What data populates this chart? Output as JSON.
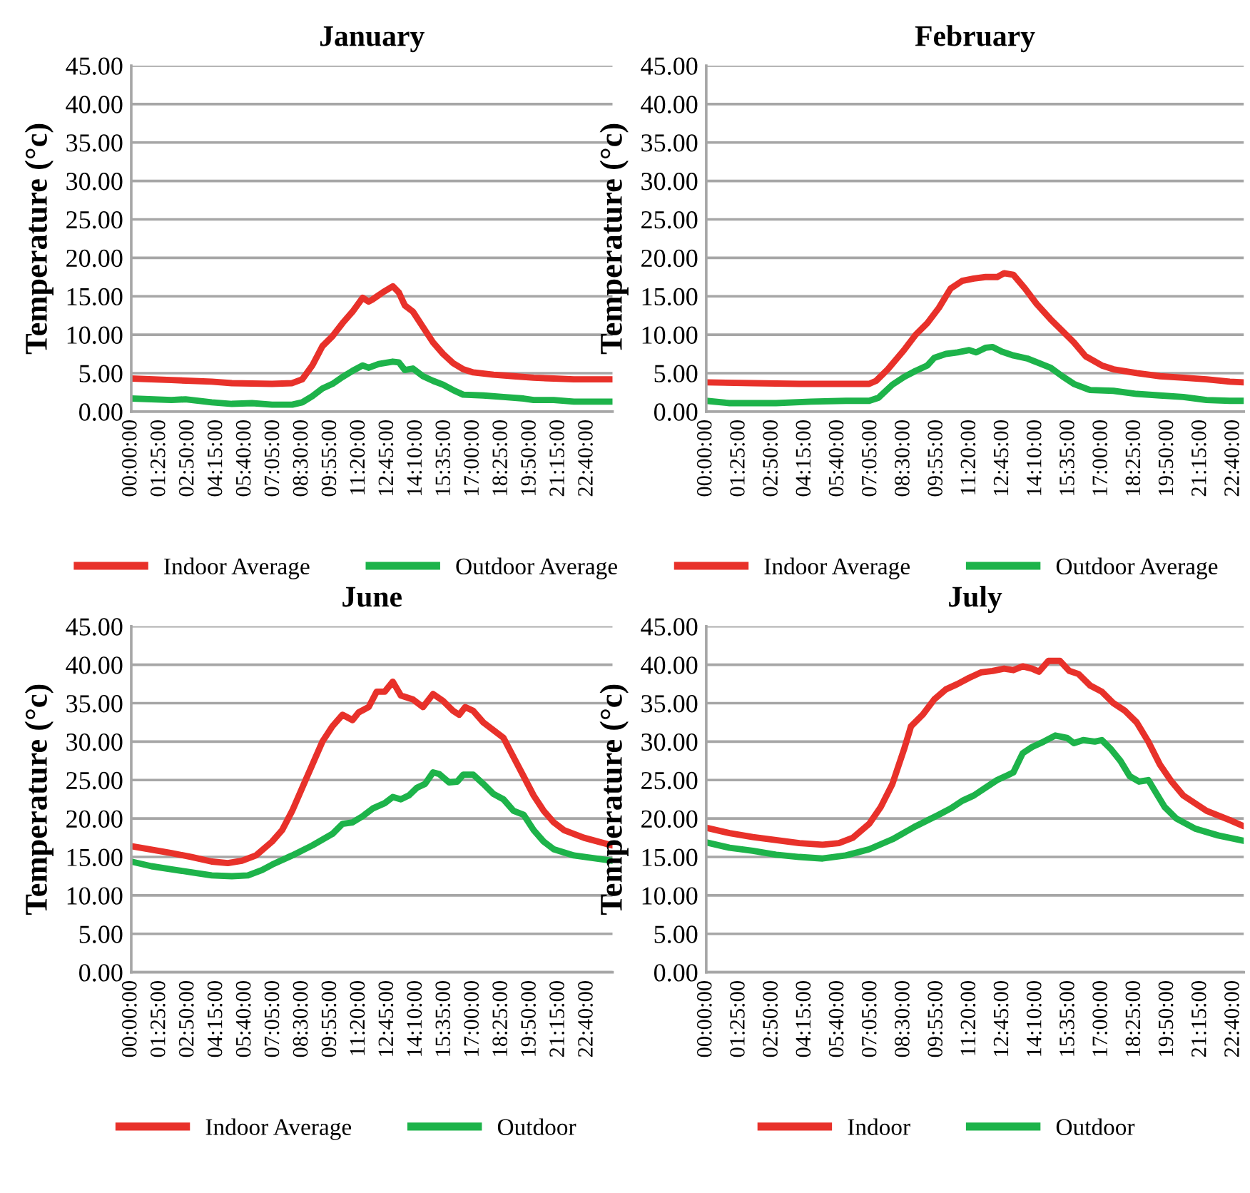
{
  "chart_data": [
    {
      "type": "line",
      "title": "January",
      "ylabel": "Temperature (°c)",
      "xlim": [
        0,
        23.92
      ],
      "ylim": [
        0,
        45
      ],
      "xticks": [
        {
          "value": 0,
          "label": "00:00:00"
        },
        {
          "value": 1.4167,
          "label": "01:25:00"
        },
        {
          "value": 2.8333,
          "label": "02:50:00"
        },
        {
          "value": 4.25,
          "label": "04:15:00"
        },
        {
          "value": 5.6667,
          "label": "05:40:00"
        },
        {
          "value": 7.0833,
          "label": "07:05:00"
        },
        {
          "value": 8.5,
          "label": "08:30:00"
        },
        {
          "value": 9.9167,
          "label": "09:55:00"
        },
        {
          "value": 11.3333,
          "label": "11:20:00"
        },
        {
          "value": 12.75,
          "label": "12:45:00"
        },
        {
          "value": 14.1667,
          "label": "14:10:00"
        },
        {
          "value": 15.5833,
          "label": "15:35:00"
        },
        {
          "value": 17,
          "label": "17:00:00"
        },
        {
          "value": 18.4167,
          "label": "18:25:00"
        },
        {
          "value": 19.8333,
          "label": "19:50:00"
        },
        {
          "value": 21.25,
          "label": "21:15:00"
        },
        {
          "value": 22.6667,
          "label": "22:40:00"
        }
      ],
      "yticks": [
        {
          "value": 0,
          "label": "0.00"
        },
        {
          "value": 5,
          "label": "5.00"
        },
        {
          "value": 10,
          "label": "10.00"
        },
        {
          "value": 15,
          "label": "15.00"
        },
        {
          "value": 20,
          "label": "20.00"
        },
        {
          "value": 25,
          "label": "25.00"
        },
        {
          "value": 30,
          "label": "30.00"
        },
        {
          "value": 35,
          "label": "35.00"
        },
        {
          "value": 40,
          "label": "40.00"
        },
        {
          "value": 45,
          "label": "45.00"
        }
      ],
      "grid": "y",
      "legend": "bottom",
      "marker": "none",
      "line_style": "solid",
      "series": [
        {
          "name": "Indoor Average",
          "color": "#e8312a",
          "x": [
            0,
            2,
            4,
            5,
            7,
            8,
            8.5,
            9,
            9.5,
            10,
            10.5,
            11,
            11.5,
            11.8,
            12,
            12.5,
            13,
            13.3,
            13.6,
            14,
            14.5,
            15,
            15.5,
            16,
            16.5,
            17,
            18,
            19,
            20,
            21,
            22,
            23.92
          ],
          "values": [
            4.3,
            4.1,
            3.9,
            3.7,
            3.6,
            3.7,
            4.2,
            6,
            8.5,
            9.8,
            11.5,
            13,
            14.8,
            14.3,
            14.6,
            15.5,
            16.3,
            15.5,
            13.8,
            13,
            11,
            9,
            7.5,
            6.3,
            5.5,
            5.1,
            4.8,
            4.6,
            4.4,
            4.3,
            4.2,
            4.2
          ]
        },
        {
          "name": "Outdoor Average",
          "color": "#1db34a",
          "x": [
            0,
            2,
            2.7,
            4,
            5,
            6,
            7,
            8,
            8.5,
            9,
            9.5,
            10,
            10.5,
            11,
            11.5,
            11.8,
            12.3,
            13,
            13.3,
            13.6,
            14,
            14.5,
            15,
            15.5,
            16,
            16.5,
            17.5,
            18.5,
            19.5,
            20,
            21,
            22,
            23.92
          ],
          "values": [
            1.7,
            1.5,
            1.6,
            1.2,
            1.0,
            1.1,
            0.9,
            0.9,
            1.2,
            2,
            3,
            3.6,
            4.5,
            5.3,
            6,
            5.7,
            6.2,
            6.5,
            6.4,
            5.4,
            5.6,
            4.6,
            4,
            3.5,
            2.8,
            2.2,
            2.1,
            1.9,
            1.7,
            1.5,
            1.5,
            1.3,
            1.3
          ]
        }
      ]
    },
    {
      "type": "line",
      "title": "February",
      "ylabel": "Temperature (°c)",
      "xlim": [
        0,
        23.1
      ],
      "ylim": [
        0,
        45
      ],
      "xticks": [
        {
          "value": 0,
          "label": "00:00:00"
        },
        {
          "value": 1.4167,
          "label": "01:25:00"
        },
        {
          "value": 2.8333,
          "label": "02:50:00"
        },
        {
          "value": 4.25,
          "label": "04:15:00"
        },
        {
          "value": 5.6667,
          "label": "05:40:00"
        },
        {
          "value": 7.0833,
          "label": "07:05:00"
        },
        {
          "value": 8.5,
          "label": "08:30:00"
        },
        {
          "value": 9.9167,
          "label": "09:55:00"
        },
        {
          "value": 11.3333,
          "label": "11:20:00"
        },
        {
          "value": 12.75,
          "label": "12:45:00"
        },
        {
          "value": 14.1667,
          "label": "14:10:00"
        },
        {
          "value": 15.5833,
          "label": "15:35:00"
        },
        {
          "value": 17,
          "label": "17:00:00"
        },
        {
          "value": 18.4167,
          "label": "18:25:00"
        },
        {
          "value": 19.8333,
          "label": "19:50:00"
        },
        {
          "value": 21.25,
          "label": "21:15:00"
        },
        {
          "value": 22.6667,
          "label": "22:40:00"
        }
      ],
      "yticks": [
        {
          "value": 0,
          "label": "0.00"
        },
        {
          "value": 5,
          "label": "5.00"
        },
        {
          "value": 10,
          "label": "10.00"
        },
        {
          "value": 15,
          "label": "15.00"
        },
        {
          "value": 20,
          "label": "20.00"
        },
        {
          "value": 25,
          "label": "25.00"
        },
        {
          "value": 30,
          "label": "30.00"
        },
        {
          "value": 35,
          "label": "35.00"
        },
        {
          "value": 40,
          "label": "40.00"
        },
        {
          "value": 45,
          "label": "45.00"
        }
      ],
      "grid": "y",
      "legend": "bottom",
      "marker": "none",
      "line_style": "solid",
      "series": [
        {
          "name": "Indoor Average",
          "color": "#e8312a",
          "x": [
            0,
            2,
            4,
            6,
            7,
            7.3,
            7.8,
            8.5,
            9,
            9.5,
            10,
            10.5,
            11,
            11.5,
            12,
            12.5,
            12.8,
            13.2,
            13.7,
            14.2,
            14.8,
            15.3,
            15.8,
            16.3,
            17,
            17.5,
            18.5,
            19.5,
            20.5,
            21.5,
            22.5,
            23.1
          ],
          "values": [
            3.8,
            3.7,
            3.6,
            3.6,
            3.6,
            4,
            5.5,
            8,
            10,
            11.5,
            13.5,
            16,
            17,
            17.3,
            17.5,
            17.5,
            18,
            17.8,
            16,
            14,
            12,
            10.5,
            9,
            7.2,
            6,
            5.5,
            5,
            4.6,
            4.4,
            4.2,
            3.9,
            3.8
          ]
        },
        {
          "name": "Outdoor Average",
          "color": "#1db34a",
          "x": [
            0,
            1,
            3,
            4.5,
            6,
            7,
            7.4,
            8,
            8.5,
            9,
            9.5,
            9.8,
            10.3,
            10.8,
            11.3,
            11.6,
            12,
            12.3,
            12.7,
            13.2,
            13.8,
            14.3,
            14.8,
            15.3,
            15.8,
            16.5,
            17.5,
            18.5,
            19.5,
            20.5,
            21.5,
            22.5,
            23.1
          ],
          "values": [
            1.4,
            1.1,
            1.1,
            1.3,
            1.4,
            1.4,
            1.8,
            3.5,
            4.5,
            5.3,
            6,
            7,
            7.5,
            7.7,
            8,
            7.7,
            8.3,
            8.4,
            7.8,
            7.3,
            6.9,
            6.3,
            5.7,
            4.6,
            3.6,
            2.8,
            2.7,
            2.3,
            2.1,
            1.9,
            1.5,
            1.4,
            1.4
          ]
        }
      ]
    },
    {
      "type": "line",
      "title": "June",
      "ylabel": "Temperature (°c)",
      "xlim": [
        0,
        23.92
      ],
      "ylim": [
        0,
        45
      ],
      "xticks": [
        {
          "value": 0,
          "label": "00:00:00"
        },
        {
          "value": 1.4167,
          "label": "01:25:00"
        },
        {
          "value": 2.8333,
          "label": "02:50:00"
        },
        {
          "value": 4.25,
          "label": "04:15:00"
        },
        {
          "value": 5.6667,
          "label": "05:40:00"
        },
        {
          "value": 7.0833,
          "label": "07:05:00"
        },
        {
          "value": 8.5,
          "label": "08:30:00"
        },
        {
          "value": 9.9167,
          "label": "09:55:00"
        },
        {
          "value": 11.3333,
          "label": "11:20:00"
        },
        {
          "value": 12.75,
          "label": "12:45:00"
        },
        {
          "value": 14.1667,
          "label": "14:10:00"
        },
        {
          "value": 15.5833,
          "label": "15:35:00"
        },
        {
          "value": 17,
          "label": "17:00:00"
        },
        {
          "value": 18.4167,
          "label": "18:25:00"
        },
        {
          "value": 19.8333,
          "label": "19:50:00"
        },
        {
          "value": 21.25,
          "label": "21:15:00"
        },
        {
          "value": 22.6667,
          "label": "22:40:00"
        }
      ],
      "yticks": [
        {
          "value": 0,
          "label": "0.00"
        },
        {
          "value": 5,
          "label": "5.00"
        },
        {
          "value": 10,
          "label": "10.00"
        },
        {
          "value": 15,
          "label": "15.00"
        },
        {
          "value": 20,
          "label": "20.00"
        },
        {
          "value": 25,
          "label": "25.00"
        },
        {
          "value": 30,
          "label": "30.00"
        },
        {
          "value": 35,
          "label": "35.00"
        },
        {
          "value": 40,
          "label": "40.00"
        },
        {
          "value": 45,
          "label": "45.00"
        }
      ],
      "grid": "y",
      "legend": "bottom",
      "marker": "none",
      "line_style": "solid",
      "series": [
        {
          "name": "Indoor Average",
          "color": "#e8312a",
          "x": [
            0,
            2,
            3,
            4,
            4.8,
            5.5,
            6.2,
            7,
            7.5,
            8,
            8.5,
            9,
            9.5,
            10,
            10.5,
            11,
            11.3,
            11.8,
            12.2,
            12.6,
            13,
            13.4,
            14,
            14.5,
            15,
            15.5,
            16,
            16.3,
            16.6,
            17,
            17.5,
            18,
            18.5,
            19,
            19.5,
            20,
            20.5,
            21,
            21.5,
            22.5,
            23.92
          ],
          "values": [
            16.4,
            15.5,
            15,
            14.4,
            14.2,
            14.5,
            15.2,
            17,
            18.5,
            21,
            24,
            27,
            30,
            32,
            33.5,
            32.8,
            33.8,
            34.5,
            36.5,
            36.5,
            37.8,
            36,
            35.5,
            34.5,
            36.2,
            35.3,
            34,
            33.5,
            34.5,
            34,
            32.5,
            31.5,
            30.5,
            28,
            25.5,
            23,
            21,
            19.5,
            18.5,
            17.5,
            16.5
          ]
        },
        {
          "name": "Outdoor",
          "color": "#1db34a",
          "x": [
            0,
            1,
            2,
            3,
            4,
            5,
            5.8,
            6.5,
            7,
            8,
            9,
            10,
            10.5,
            11,
            11.5,
            12,
            12.6,
            13,
            13.4,
            13.8,
            14.2,
            14.6,
            15,
            15.3,
            15.8,
            16.2,
            16.5,
            17,
            17.5,
            18,
            18.5,
            19,
            19.5,
            20,
            20.5,
            21,
            22,
            23.92
          ],
          "values": [
            14.4,
            13.8,
            13.4,
            13,
            12.6,
            12.5,
            12.6,
            13.3,
            14,
            15.2,
            16.5,
            18,
            19.3,
            19.5,
            20.3,
            21.3,
            22,
            22.8,
            22.5,
            23,
            24,
            24.5,
            26,
            25.8,
            24.7,
            24.8,
            25.7,
            25.7,
            24.5,
            23.2,
            22.5,
            21,
            20.5,
            18.5,
            17,
            16,
            15.2,
            14.5
          ]
        }
      ]
    },
    {
      "type": "line",
      "title": "July",
      "ylabel": "Temperature (°c)",
      "xlim": [
        0,
        23.1
      ],
      "ylim": [
        0,
        45
      ],
      "xticks": [
        {
          "value": 0,
          "label": "00:00:00"
        },
        {
          "value": 1.4167,
          "label": "01:25:00"
        },
        {
          "value": 2.8333,
          "label": "02:50:00"
        },
        {
          "value": 4.25,
          "label": "04:15:00"
        },
        {
          "value": 5.6667,
          "label": "05:40:00"
        },
        {
          "value": 7.0833,
          "label": "07:05:00"
        },
        {
          "value": 8.5,
          "label": "08:30:00"
        },
        {
          "value": 9.9167,
          "label": "09:55:00"
        },
        {
          "value": 11.3333,
          "label": "11:20:00"
        },
        {
          "value": 12.75,
          "label": "12:45:00"
        },
        {
          "value": 14.1667,
          "label": "14:10:00"
        },
        {
          "value": 15.5833,
          "label": "15:35:00"
        },
        {
          "value": 17,
          "label": "17:00:00"
        },
        {
          "value": 18.4167,
          "label": "18:25:00"
        },
        {
          "value": 19.8333,
          "label": "19:50:00"
        },
        {
          "value": 21.25,
          "label": "21:15:00"
        },
        {
          "value": 22.6667,
          "label": "22:40:00"
        }
      ],
      "yticks": [
        {
          "value": 0,
          "label": "0.00"
        },
        {
          "value": 5,
          "label": "5.00"
        },
        {
          "value": 10,
          "label": "10.00"
        },
        {
          "value": 15,
          "label": "15.00"
        },
        {
          "value": 20,
          "label": "20.00"
        },
        {
          "value": 25,
          "label": "25.00"
        },
        {
          "value": 30,
          "label": "30.00"
        },
        {
          "value": 35,
          "label": "35.00"
        },
        {
          "value": 40,
          "label": "40.00"
        },
        {
          "value": 45,
          "label": "45.00"
        }
      ],
      "grid": "y",
      "legend": "bottom",
      "marker": "none",
      "line_style": "solid",
      "series": [
        {
          "name": "Indoor",
          "color": "#e8312a",
          "x": [
            0,
            1,
            2,
            3,
            4,
            5,
            5.7,
            6.3,
            7,
            7.5,
            8,
            8.5,
            8.8,
            9.3,
            9.8,
            10.3,
            10.8,
            11.3,
            11.8,
            12.3,
            12.8,
            13.2,
            13.6,
            14,
            14.3,
            14.7,
            15.2,
            15.6,
            16,
            16.5,
            17,
            17.5,
            18,
            18.5,
            19,
            19.5,
            20,
            20.5,
            21.5,
            22.5,
            23.1
          ],
          "values": [
            18.8,
            18.1,
            17.6,
            17.2,
            16.8,
            16.6,
            16.8,
            17.5,
            19.3,
            21.5,
            24.5,
            29,
            32,
            33.5,
            35.5,
            36.8,
            37.5,
            38.3,
            39,
            39.2,
            39.5,
            39.3,
            39.8,
            39.5,
            39.1,
            40.5,
            40.5,
            39.2,
            38.8,
            37.3,
            36.5,
            35,
            34,
            32.5,
            30,
            27,
            24.8,
            23,
            21,
            19.8,
            19
          ]
        },
        {
          "name": "Outdoor",
          "color": "#1db34a",
          "x": [
            0,
            1,
            2,
            3,
            4,
            5,
            6,
            7,
            8,
            9,
            10,
            10.5,
            11,
            11.5,
            12,
            12.5,
            13,
            13.2,
            13.6,
            14,
            14.5,
            15,
            15.5,
            15.8,
            16.2,
            16.7,
            17,
            17.4,
            17.8,
            18.2,
            18.6,
            19,
            19.3,
            19.7,
            20.2,
            21,
            22,
            23.1
          ],
          "values": [
            16.9,
            16.2,
            15.8,
            15.3,
            15,
            14.8,
            15.2,
            16,
            17.3,
            19,
            20.5,
            21.3,
            22.3,
            23,
            24,
            25,
            25.7,
            26,
            28.5,
            29.3,
            30,
            30.8,
            30.5,
            29.8,
            30.2,
            30,
            30.2,
            29,
            27.5,
            25.5,
            24.8,
            25,
            23.5,
            21.5,
            20,
            18.7,
            17.8,
            17.1
          ]
        }
      ]
    }
  ]
}
